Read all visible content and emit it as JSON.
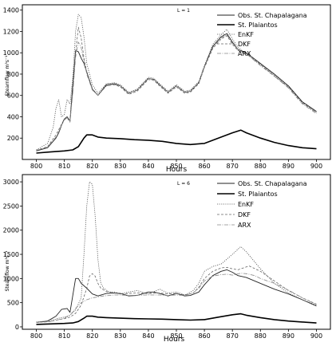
{
  "chart_data": [
    {
      "type": "line",
      "title": "L = 1",
      "xlabel": "Hours",
      "ylabel": "Stearnflow m³s⁻¹",
      "xlim": [
        795,
        905
      ],
      "ylim": [
        0,
        1450
      ],
      "xticks": [
        "800",
        "810",
        "820",
        "830",
        "840",
        "850",
        "860",
        "870",
        "880",
        "890",
        "900"
      ],
      "yticks": [
        "200",
        "400",
        "600",
        "800",
        "1000",
        "1200",
        "1400"
      ],
      "legend_position": "top-right",
      "series": [
        {
          "name": "Obs. St. Chapalagana",
          "style": "solid-thin",
          "color": "#222222",
          "x": [
            800,
            804,
            807,
            808,
            809,
            810,
            811,
            812,
            813,
            814,
            815,
            816,
            817,
            818,
            820,
            822,
            825,
            828,
            830,
            833,
            836,
            840,
            842,
            844,
            847,
            850,
            853,
            855,
            858,
            860,
            863,
            866,
            868,
            870,
            872,
            875,
            880,
            885,
            890,
            895,
            900
          ],
          "y": [
            80,
            110,
            200,
            250,
            320,
            380,
            400,
            360,
            700,
            1020,
            1010,
            950,
            900,
            820,
            660,
            600,
            700,
            710,
            690,
            620,
            650,
            760,
            750,
            700,
            630,
            690,
            630,
            640,
            720,
            870,
            1060,
            1150,
            1180,
            1100,
            1030,
            1000,
            900,
            800,
            690,
            540,
            450
          ]
        },
        {
          "name": "St. Plaiantos",
          "style": "solid-thick",
          "color": "#000000",
          "x": [
            800,
            805,
            810,
            813,
            815,
            817,
            818,
            820,
            822,
            825,
            830,
            835,
            840,
            845,
            850,
            855,
            860,
            865,
            870,
            873,
            875,
            880,
            885,
            890,
            895,
            900
          ],
          "y": [
            60,
            70,
            80,
            90,
            120,
            200,
            230,
            230,
            210,
            200,
            195,
            185,
            180,
            170,
            150,
            140,
            150,
            200,
            250,
            275,
            250,
            200,
            160,
            130,
            110,
            100
          ]
        },
        {
          "name": "EnKF",
          "style": "dotted",
          "color": "#555555",
          "x": [
            800,
            804,
            806,
            807,
            808,
            809,
            810,
            811,
            812,
            813,
            814,
            815,
            816,
            817,
            818,
            820,
            822,
            825,
            828,
            830,
            833,
            836,
            840,
            842,
            844,
            847,
            850,
            853,
            855,
            858,
            860,
            863,
            866,
            868,
            870,
            872,
            875,
            880,
            885,
            890,
            895,
            900
          ],
          "y": [
            90,
            150,
            300,
            480,
            560,
            400,
            420,
            560,
            520,
            760,
            1200,
            1360,
            1330,
            1150,
            900,
            700,
            620,
            710,
            720,
            700,
            630,
            660,
            770,
            760,
            710,
            640,
            700,
            640,
            650,
            730,
            880,
            1080,
            1170,
            1220,
            1130,
            1050,
            990,
            890,
            790,
            680,
            530,
            440
          ]
        },
        {
          "name": "DKF",
          "style": "dashed",
          "color": "#666666",
          "x": [
            800,
            804,
            807,
            808,
            809,
            810,
            811,
            812,
            813,
            814,
            815,
            816,
            817,
            818,
            820,
            822,
            825,
            828,
            830,
            833,
            836,
            840,
            842,
            844,
            847,
            850,
            853,
            855,
            858,
            860,
            863,
            866,
            868,
            870,
            872,
            875,
            880,
            885,
            890,
            895,
            900
          ],
          "y": [
            85,
            120,
            230,
            280,
            330,
            380,
            390,
            350,
            640,
            1000,
            1240,
            1140,
            950,
            820,
            660,
            600,
            690,
            700,
            680,
            610,
            640,
            750,
            740,
            690,
            620,
            680,
            620,
            630,
            710,
            860,
            1040,
            1130,
            1160,
            1080,
            1020,
            990,
            890,
            780,
            680,
            530,
            440
          ]
        },
        {
          "name": "ARX",
          "style": "dashdot",
          "color": "#888888",
          "x": [
            800,
            804,
            807,
            808,
            809,
            810,
            811,
            812,
            813,
            814,
            815,
            816,
            817,
            818,
            820,
            822,
            825,
            828,
            830,
            833,
            836,
            840,
            842,
            844,
            847,
            850,
            853,
            855,
            858,
            860,
            863,
            866,
            868,
            870,
            872,
            875,
            880,
            885,
            890,
            895,
            900
          ],
          "y": [
            85,
            115,
            210,
            260,
            320,
            370,
            390,
            360,
            620,
            960,
            1100,
            1050,
            920,
            800,
            650,
            600,
            690,
            700,
            690,
            620,
            650,
            760,
            750,
            700,
            630,
            690,
            630,
            640,
            720,
            870,
            1050,
            1140,
            1170,
            1090,
            1030,
            990,
            880,
            780,
            670,
            520,
            430
          ]
        }
      ]
    },
    {
      "type": "line",
      "title": "L = 6",
      "xlabel": "Hours",
      "ylabel": "Stearnflow m³s⁻¹",
      "xlim": [
        795,
        905
      ],
      "ylim": [
        -50,
        3150
      ],
      "xticks": [
        "800",
        "810",
        "820",
        "830",
        "840",
        "850",
        "860",
        "870",
        "880",
        "890",
        "900"
      ],
      "yticks": [
        "0",
        "500",
        "1000",
        "1500",
        "2000",
        "2500",
        "3000"
      ],
      "legend_position": "top-right",
      "series": [
        {
          "name": "Obs. St. Chapalagana",
          "style": "solid-thin",
          "color": "#222222",
          "x": [
            800,
            804,
            807,
            809,
            811,
            812,
            813,
            814,
            815,
            816,
            818,
            820,
            822,
            825,
            828,
            830,
            833,
            836,
            840,
            842,
            844,
            847,
            850,
            853,
            855,
            858,
            860,
            863,
            866,
            868,
            870,
            872,
            875,
            880,
            885,
            890,
            895,
            900
          ],
          "y": [
            90,
            120,
            220,
            360,
            380,
            300,
            650,
            1000,
            1000,
            900,
            800,
            680,
            640,
            690,
            700,
            690,
            640,
            650,
            720,
            720,
            690,
            640,
            690,
            640,
            650,
            720,
            870,
            1060,
            1150,
            1180,
            1130,
            1060,
            1020,
            900,
            780,
            680,
            560,
            430
          ]
        },
        {
          "name": "St. Plaiantos",
          "style": "solid-thick",
          "color": "#000000",
          "x": [
            800,
            805,
            810,
            813,
            815,
            817,
            818,
            820,
            822,
            825,
            830,
            835,
            840,
            845,
            850,
            855,
            860,
            865,
            870,
            873,
            875,
            880,
            885,
            890,
            895,
            900
          ],
          "y": [
            50,
            60,
            70,
            80,
            110,
            180,
            220,
            220,
            200,
            190,
            180,
            170,
            165,
            160,
            150,
            140,
            150,
            200,
            250,
            270,
            240,
            190,
            150,
            120,
            100,
            80
          ]
        },
        {
          "name": "EnKF",
          "style": "dotted",
          "color": "#555555",
          "x": [
            800,
            805,
            808,
            810,
            812,
            814,
            816,
            817,
            818,
            819,
            820,
            821,
            822,
            823,
            824,
            826,
            828,
            830,
            833,
            836,
            840,
            844,
            847,
            850,
            853,
            856,
            858,
            860,
            863,
            866,
            868,
            870,
            873,
            875,
            880,
            885,
            890,
            895,
            900
          ],
          "y": [
            100,
            130,
            180,
            200,
            240,
            350,
            600,
            1500,
            2500,
            3000,
            2950,
            2300,
            1400,
            900,
            800,
            720,
            720,
            680,
            720,
            750,
            680,
            780,
            700,
            720,
            660,
            750,
            900,
            1150,
            1250,
            1300,
            1400,
            1500,
            1660,
            1550,
            1200,
            900,
            700,
            560,
            450
          ]
        },
        {
          "name": "DKF",
          "style": "dashed",
          "color": "#666666",
          "x": [
            800,
            805,
            808,
            810,
            812,
            814,
            816,
            818,
            819,
            820,
            821,
            822,
            823,
            825,
            828,
            830,
            833,
            836,
            840,
            844,
            847,
            850,
            853,
            856,
            858,
            860,
            863,
            866,
            868,
            870,
            872,
            874,
            876,
            880,
            885,
            890,
            895,
            900
          ],
          "y": [
            90,
            110,
            150,
            170,
            200,
            280,
            450,
            800,
            1050,
            1100,
            1050,
            900,
            800,
            730,
            700,
            680,
            690,
            700,
            690,
            700,
            680,
            690,
            660,
            700,
            820,
            1000,
            1150,
            1220,
            1230,
            1200,
            1180,
            1220,
            1260,
            1150,
            950,
            750,
            600,
            470
          ]
        },
        {
          "name": "ARX",
          "style": "dashdot",
          "color": "#888888",
          "x": [
            800,
            805,
            808,
            810,
            812,
            814,
            816,
            818,
            820,
            822,
            824,
            826,
            828,
            830,
            833,
            836,
            840,
            844,
            847,
            850,
            853,
            856,
            858,
            860,
            863,
            866,
            868,
            870,
            873,
            875,
            878,
            880,
            885,
            890,
            895,
            900
          ],
          "y": [
            90,
            110,
            150,
            180,
            240,
            380,
            500,
            560,
            600,
            620,
            640,
            650,
            660,
            660,
            650,
            655,
            660,
            660,
            650,
            660,
            650,
            700,
            800,
            950,
            1050,
            1080,
            1090,
            1070,
            1110,
            1100,
            1060,
            1000,
            900,
            760,
            600,
            460
          ]
        }
      ]
    }
  ]
}
